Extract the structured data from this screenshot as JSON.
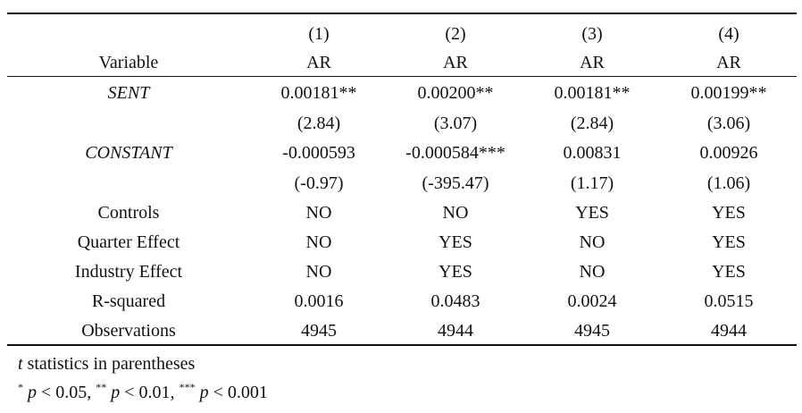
{
  "table": {
    "header_numbers": [
      "(1)",
      "(2)",
      "(3)",
      "(4)"
    ],
    "variable_header": "Variable",
    "dep_vars": [
      "AR",
      "AR",
      "AR",
      "AR"
    ],
    "rows": [
      {
        "label": "SENT",
        "italic": true,
        "values": [
          "0.00181**",
          "0.00200**",
          "0.00181**",
          "0.00199**"
        ]
      },
      {
        "label": "",
        "italic": false,
        "values": [
          "(2.84)",
          "(3.07)",
          "(2.84)",
          "(3.06)"
        ]
      },
      {
        "label": "CONSTANT",
        "italic": true,
        "values": [
          "-0.000593",
          "-0.000584***",
          "0.00831",
          "0.00926"
        ]
      },
      {
        "label": "",
        "italic": false,
        "values": [
          "(-0.97)",
          "(-395.47)",
          "(1.17)",
          "(1.06)"
        ]
      },
      {
        "label": "Controls",
        "italic": false,
        "values": [
          "NO",
          "NO",
          "YES",
          "YES"
        ]
      },
      {
        "label": "Quarter Effect",
        "italic": false,
        "values": [
          "NO",
          "YES",
          "NO",
          "YES"
        ]
      },
      {
        "label": "Industry Effect",
        "italic": false,
        "values": [
          "NO",
          "YES",
          "NO",
          "YES"
        ]
      },
      {
        "label": "R-squared",
        "italic": false,
        "values": [
          "0.0016",
          "0.0483",
          "0.0024",
          "0.0515"
        ]
      },
      {
        "label": "Observations",
        "italic": false,
        "values": [
          "4945",
          "4944",
          "4945",
          "4944"
        ]
      }
    ]
  },
  "notes": {
    "t_symbol": "t",
    "t_text": " statistics in parentheses",
    "star1": "*",
    "star2": "**",
    "star3": "***",
    "p": "p",
    "lt1": " < 0.05, ",
    "lt2": " < 0.01, ",
    "lt3": " < 0.001"
  }
}
